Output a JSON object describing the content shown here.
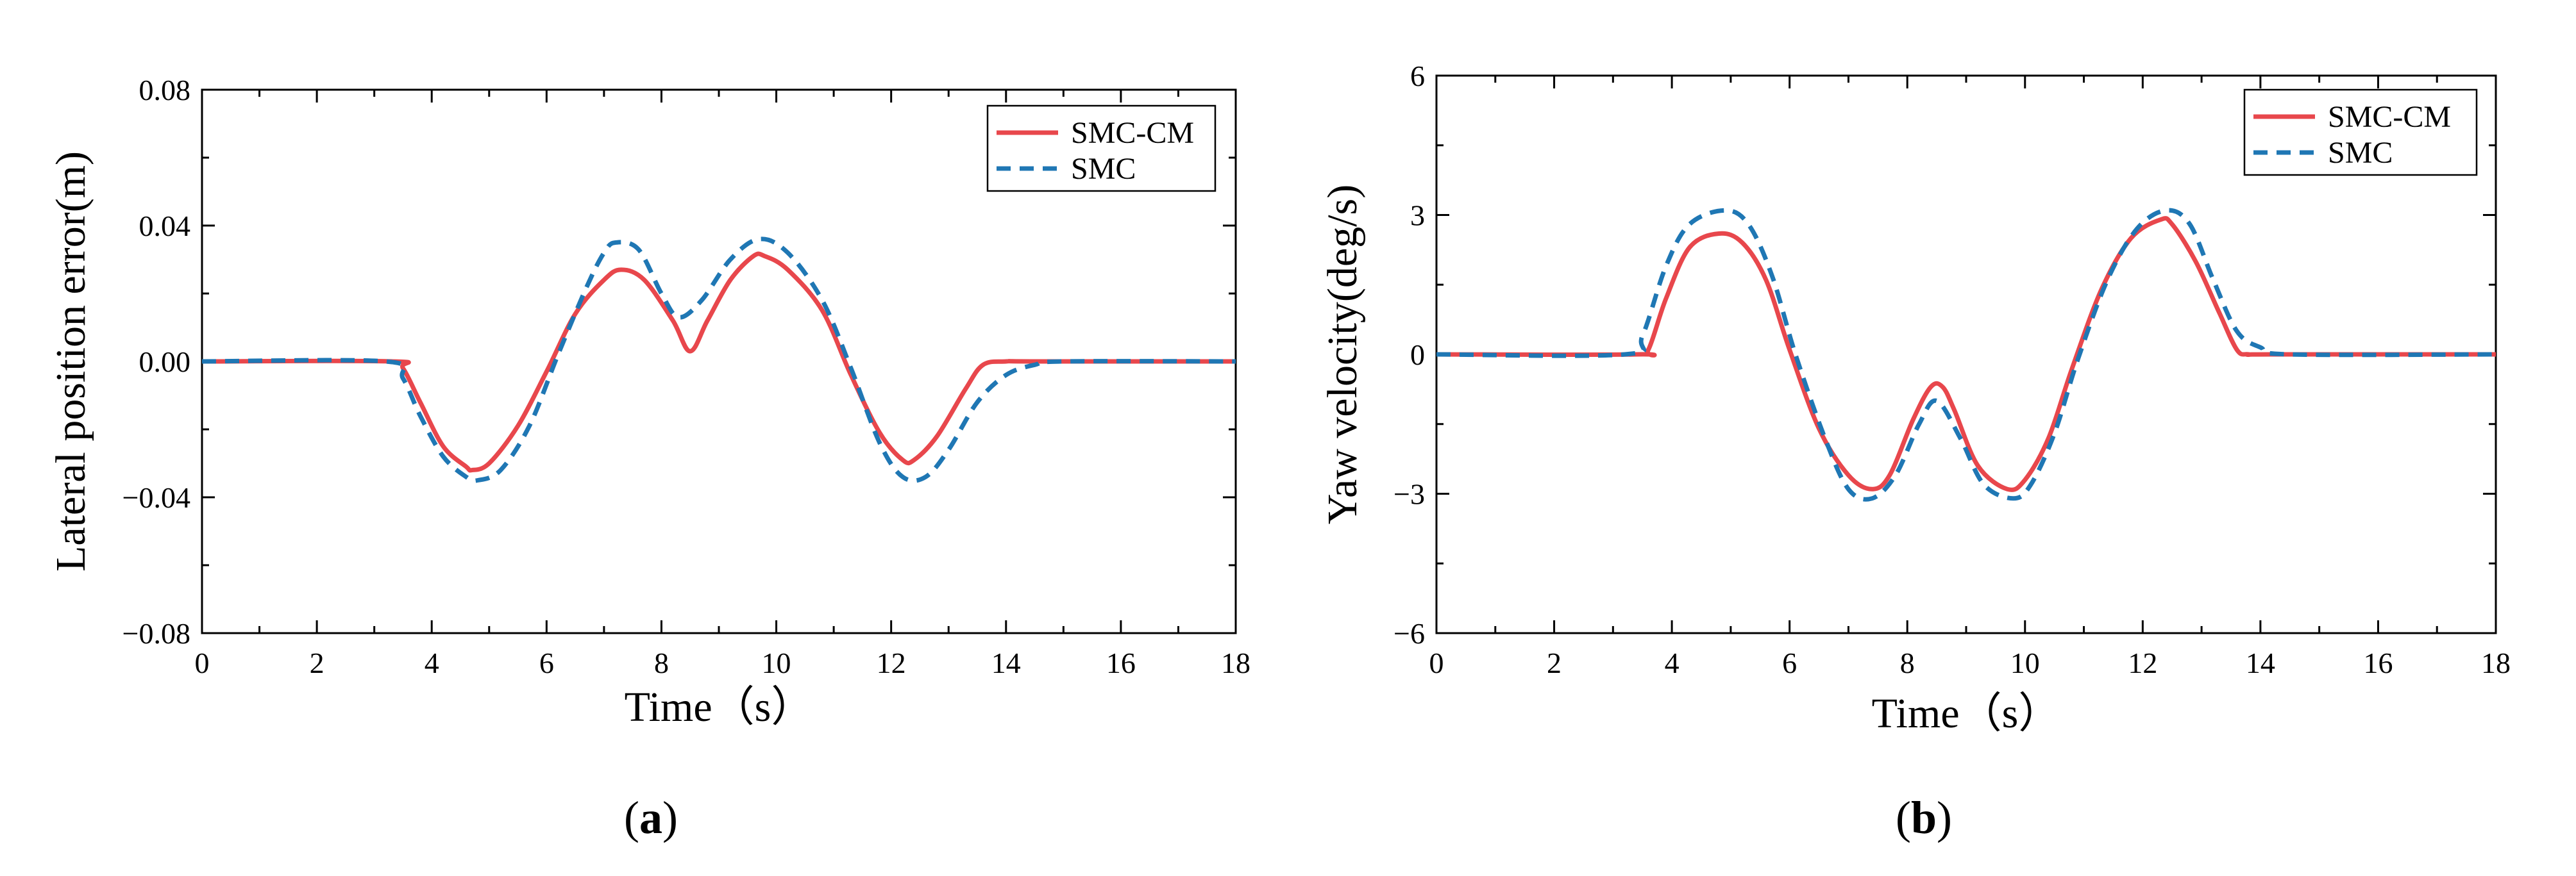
{
  "colors": {
    "smc_cm": "#e8474c",
    "smc": "#1f77b4",
    "axis": "#000000"
  },
  "chart_data": [
    {
      "type": "line",
      "panel_label": {
        "open": "(",
        "letter": "a",
        "close": ")"
      },
      "xlabel": "Time（s）",
      "ylabel": "Lateral position error(m)",
      "xlim": [
        0,
        18
      ],
      "ylim": [
        -0.08,
        0.08
      ],
      "x_ticks": [
        0,
        2,
        4,
        6,
        8,
        10,
        12,
        14,
        16,
        18
      ],
      "x_tick_labels": [
        "0",
        "2",
        "4",
        "6",
        "8",
        "10",
        "12",
        "14",
        "16",
        "18"
      ],
      "y_ticks": [
        -0.08,
        -0.04,
        0.0,
        0.04,
        0.08
      ],
      "y_tick_labels": [
        "−0.08",
        "−0.04",
        "0.00",
        "0.04",
        "0.08"
      ],
      "legend_position": "top-right",
      "series": [
        {
          "name": "SMC-CM",
          "style": "solid",
          "x": [
            0,
            3.3,
            3.5,
            3.8,
            4.2,
            4.6,
            4.7,
            5.0,
            5.5,
            6.0,
            6.5,
            7.0,
            7.3,
            7.7,
            8.2,
            8.5,
            8.8,
            9.2,
            9.6,
            9.8,
            10.2,
            10.8,
            11.3,
            11.8,
            12.2,
            12.4,
            12.8,
            13.3,
            13.6,
            14.0,
            14.5,
            18
          ],
          "y": [
            0,
            0,
            -0.002,
            -0.012,
            -0.025,
            -0.031,
            -0.032,
            -0.03,
            -0.019,
            -0.003,
            0.014,
            0.024,
            0.027,
            0.024,
            0.012,
            0.003,
            0.012,
            0.024,
            0.031,
            0.031,
            0.027,
            0.015,
            -0.004,
            -0.021,
            -0.029,
            -0.029,
            -0.022,
            -0.008,
            -0.001,
            0,
            0,
            0
          ]
        },
        {
          "name": "SMC",
          "style": "dashed",
          "x": [
            0,
            3.2,
            3.5,
            3.8,
            4.2,
            4.6,
            4.8,
            5.2,
            5.7,
            6.2,
            6.7,
            7.0,
            7.2,
            7.6,
            8.0,
            8.3,
            8.7,
            9.2,
            9.7,
            10.2,
            10.8,
            11.3,
            11.8,
            12.2,
            12.6,
            13.0,
            13.5,
            14.0,
            14.5,
            15.0,
            18
          ],
          "y": [
            0,
            0,
            -0.005,
            -0.016,
            -0.028,
            -0.034,
            -0.035,
            -0.032,
            -0.019,
            0.002,
            0.022,
            0.032,
            0.035,
            0.033,
            0.02,
            0.013,
            0.018,
            0.03,
            0.036,
            0.032,
            0.018,
            -0.002,
            -0.024,
            -0.034,
            -0.034,
            -0.026,
            -0.012,
            -0.004,
            -0.001,
            0,
            0
          ]
        }
      ]
    },
    {
      "type": "line",
      "panel_label": {
        "open": "(",
        "letter": "b",
        "close": ")"
      },
      "xlabel": "Time（s）",
      "ylabel": "Yaw velocity(deg/s)",
      "xlim": [
        0,
        18
      ],
      "ylim": [
        -6,
        6
      ],
      "x_ticks": [
        0,
        2,
        4,
        6,
        8,
        10,
        12,
        14,
        16,
        18
      ],
      "x_tick_labels": [
        "0",
        "2",
        "4",
        "6",
        "8",
        "10",
        "12",
        "14",
        "16",
        "18"
      ],
      "y_ticks": [
        -6,
        -3,
        0,
        3,
        6
      ],
      "y_tick_labels": [
        "−6",
        "−3",
        "0",
        "3",
        "6"
      ],
      "legend_position": "top-right",
      "series": [
        {
          "name": "SMC-CM",
          "style": "solid",
          "x": [
            0,
            3.4,
            3.6,
            3.9,
            4.3,
            4.8,
            5.2,
            5.6,
            6.0,
            6.5,
            7.0,
            7.4,
            7.7,
            8.1,
            8.4,
            8.6,
            8.8,
            9.2,
            9.7,
            10.0,
            10.4,
            10.8,
            11.3,
            11.8,
            12.3,
            12.5,
            12.9,
            13.3,
            13.6,
            13.8,
            14.2,
            18
          ],
          "y": [
            0,
            0,
            0.1,
            1.2,
            2.3,
            2.6,
            2.4,
            1.6,
            0.1,
            -1.6,
            -2.6,
            -2.9,
            -2.6,
            -1.4,
            -0.7,
            -0.7,
            -1.2,
            -2.4,
            -2.9,
            -2.7,
            -1.8,
            -0.3,
            1.4,
            2.5,
            2.9,
            2.8,
            2.0,
            0.9,
            0.1,
            0,
            0,
            0
          ]
        },
        {
          "name": "SMC",
          "style": "dashed",
          "x": [
            0,
            3.2,
            3.5,
            3.9,
            4.3,
            4.9,
            5.3,
            5.7,
            6.1,
            6.6,
            7.0,
            7.4,
            7.8,
            8.2,
            8.5,
            8.9,
            9.3,
            9.8,
            10.1,
            10.5,
            10.9,
            11.4,
            11.9,
            12.4,
            12.8,
            13.2,
            13.6,
            14.0,
            14.5,
            18
          ],
          "y": [
            0,
            0,
            0.4,
            1.9,
            2.8,
            3.1,
            2.8,
            1.7,
            0,
            -1.8,
            -2.9,
            -3.1,
            -2.6,
            -1.5,
            -1.0,
            -1.8,
            -2.8,
            -3.1,
            -2.8,
            -1.7,
            -0.1,
            1.6,
            2.7,
            3.1,
            2.8,
            1.6,
            0.5,
            0.15,
            0,
            0
          ]
        }
      ]
    }
  ]
}
